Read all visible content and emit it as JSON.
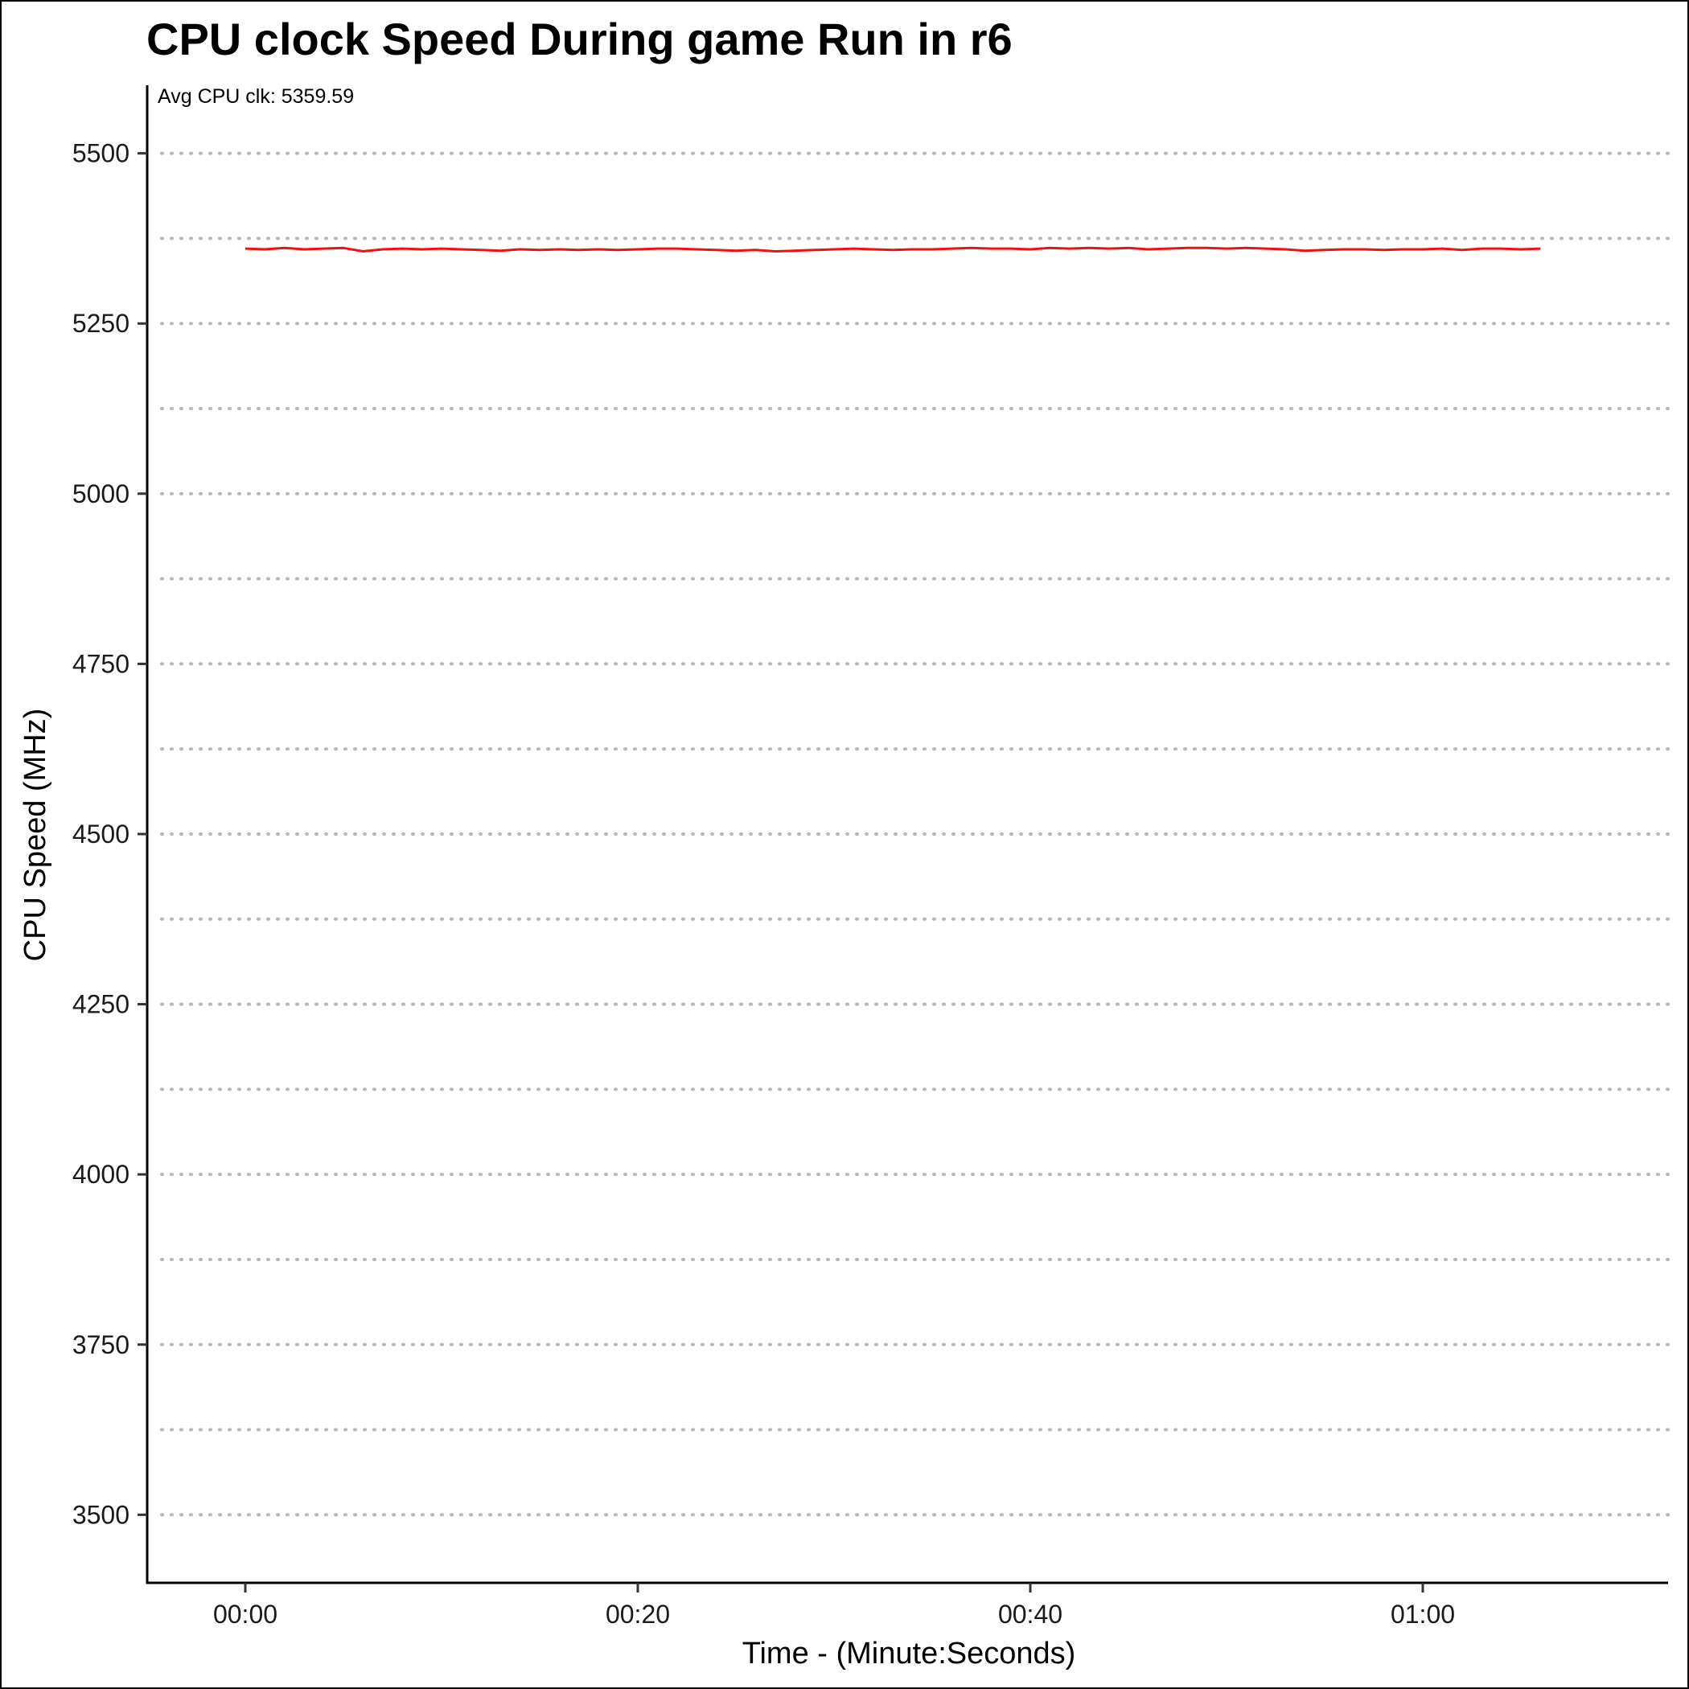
{
  "chart_data": {
    "type": "line",
    "title": "CPU clock Speed During game Run in r6",
    "xlabel": "Time - (Minute:Seconds)",
    "ylabel": "CPU Speed (MHz)",
    "annotation": "Avg CPU clk: 5359.59",
    "xlim": [
      -5,
      72.5
    ],
    "ylim": [
      3400,
      5600
    ],
    "x_ticks": [
      {
        "value": 0,
        "label": "00:00"
      },
      {
        "value": 20,
        "label": "00:20"
      },
      {
        "value": 40,
        "label": "00:40"
      },
      {
        "value": 60,
        "label": "01:00"
      }
    ],
    "y_ticks": [
      {
        "value": 3500,
        "label": "3500"
      },
      {
        "value": 3750,
        "label": "3750"
      },
      {
        "value": 4000,
        "label": "4000"
      },
      {
        "value": 4250,
        "label": "4250"
      },
      {
        "value": 4500,
        "label": "4500"
      },
      {
        "value": 4750,
        "label": "4750"
      },
      {
        "value": 5000,
        "label": "5000"
      },
      {
        "value": 5250,
        "label": "5250"
      },
      {
        "value": 5500,
        "label": "5500"
      }
    ],
    "grid_minor_y": [
      3625,
      3875,
      4125,
      4375,
      4625,
      4875,
      5125,
      5375
    ],
    "grid": "horizontal-dotted",
    "series": [
      {
        "color": "#ee1111",
        "x": [
          0,
          1,
          2,
          3,
          4,
          5,
          6,
          7,
          8,
          9,
          10,
          11,
          12,
          13,
          14,
          15,
          16,
          17,
          18,
          19,
          20,
          21,
          22,
          23,
          24,
          25,
          26,
          27,
          28,
          29,
          30,
          31,
          32,
          33,
          34,
          35,
          36,
          37,
          38,
          39,
          40,
          41,
          42,
          43,
          44,
          45,
          46,
          47,
          48,
          49,
          50,
          51,
          52,
          53,
          54,
          55,
          56,
          57,
          58,
          59,
          60,
          61,
          62,
          63,
          64,
          65,
          66
        ],
        "values": [
          5360,
          5359,
          5361,
          5359,
          5360,
          5361,
          5356,
          5359,
          5360,
          5359,
          5360,
          5359,
          5358,
          5357,
          5359,
          5358,
          5359,
          5358,
          5359,
          5358,
          5359,
          5360,
          5360,
          5359,
          5358,
          5357,
          5358,
          5356,
          5357,
          5358,
          5359,
          5360,
          5359,
          5358,
          5359,
          5359,
          5360,
          5361,
          5360,
          5360,
          5359,
          5361,
          5360,
          5361,
          5360,
          5361,
          5359,
          5360,
          5361,
          5361,
          5360,
          5361,
          5360,
          5359,
          5357,
          5358,
          5359,
          5359,
          5358,
          5359,
          5359,
          5360,
          5358,
          5360,
          5360,
          5359,
          5360
        ]
      }
    ]
  }
}
